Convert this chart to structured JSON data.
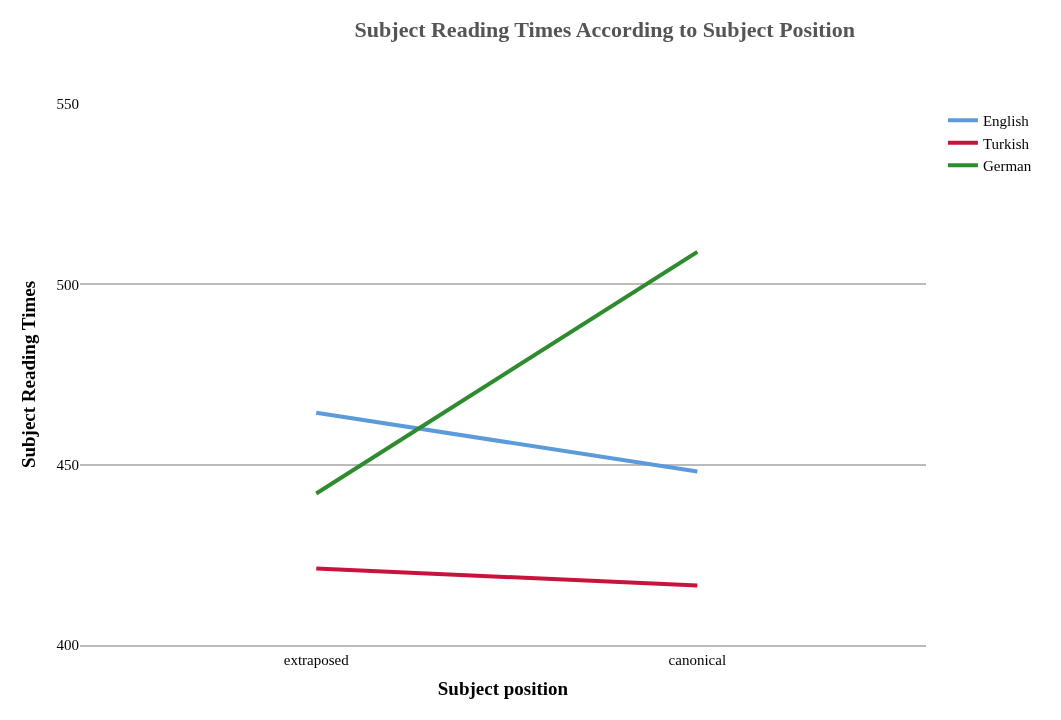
{
  "chart_data": {
    "type": "line",
    "title": "Subject Reading Times According to Subject Position",
    "xlabel": "Subject position",
    "ylabel": "Subject Reading Times",
    "categories": [
      "extraposed",
      "canonical"
    ],
    "series": [
      {
        "name": "English",
        "color": "#5b9bdc",
        "values": [
          464.4,
          448.1
        ]
      },
      {
        "name": "Turkish",
        "color": "#c8143c",
        "values": [
          421.2,
          416.5
        ]
      },
      {
        "name": "German",
        "color": "#2e8b2e",
        "values": [
          442,
          509
        ]
      }
    ],
    "ylim": [
      400,
      550
    ],
    "yticks": [
      400,
      450,
      500,
      550
    ],
    "grid": "y",
    "legend": "top right",
    "marker": "none",
    "line_style": "solid"
  }
}
